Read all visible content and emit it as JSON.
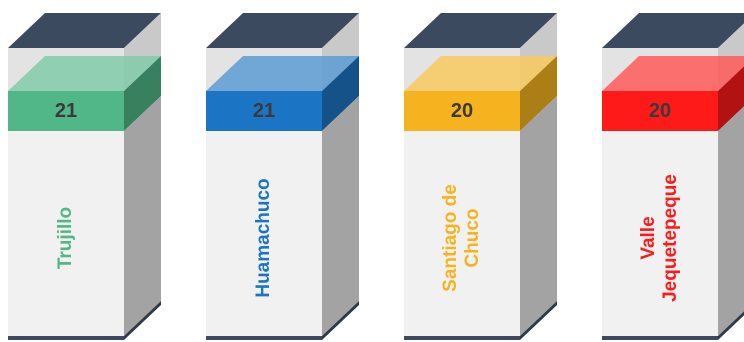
{
  "boxes": [
    {
      "value": "21",
      "label_lines": [
        "Trujillo"
      ],
      "color": "#52B788"
    },
    {
      "value": "21",
      "label_lines": [
        "Huamachuco"
      ],
      "color": "#1C75C4"
    },
    {
      "value": "20",
      "label_lines": [
        "Santiago de",
        "Chuco"
      ],
      "color": "#F5B41F"
    },
    {
      "value": "20",
      "label_lines": [
        "Valle",
        "Jequetepeque"
      ],
      "color": "#FF1A1A"
    }
  ]
}
